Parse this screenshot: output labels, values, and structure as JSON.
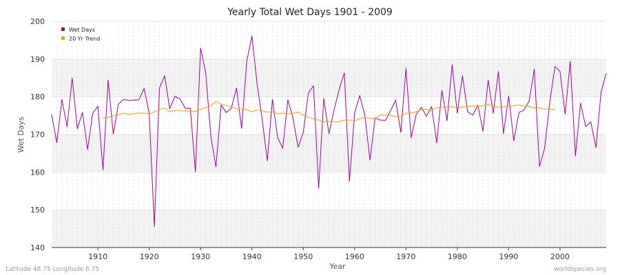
{
  "footer": {
    "left": "Latitude 48.75 Longitude 6.75",
    "right": "worldspecies.org"
  },
  "colors": {
    "wet_days": "#990099",
    "trend": "#ff9900",
    "band": "#f2f2f2",
    "grid": "#dddddd"
  },
  "chart_data": {
    "type": "line",
    "title": "Yearly Total Wet Days 1901 - 2009",
    "xlabel": "Year",
    "ylabel": "Wet Days",
    "xlim": [
      1901,
      2009
    ],
    "ylim": [
      140,
      200
    ],
    "xticks": [
      1910,
      1920,
      1930,
      1940,
      1950,
      1960,
      1970,
      1980,
      1990,
      2000
    ],
    "yticks": [
      140,
      150,
      160,
      170,
      180,
      190,
      200
    ],
    "grid": true,
    "legend": "top-left",
    "series": [
      {
        "name": "Wet Days",
        "color": "#990099",
        "x": [
          1901,
          1902,
          1903,
          1904,
          1905,
          1906,
          1907,
          1908,
          1909,
          1910,
          1911,
          1912,
          1913,
          1914,
          1915,
          1916,
          1917,
          1918,
          1919,
          1920,
          1921,
          1922,
          1923,
          1924,
          1925,
          1926,
          1927,
          1928,
          1929,
          1930,
          1931,
          1932,
          1933,
          1934,
          1935,
          1936,
          1937,
          1938,
          1939,
          1940,
          1941,
          1942,
          1943,
          1944,
          1945,
          1946,
          1947,
          1948,
          1949,
          1950,
          1951,
          1952,
          1953,
          1954,
          1955,
          1956,
          1957,
          1958,
          1959,
          1960,
          1961,
          1962,
          1963,
          1964,
          1965,
          1966,
          1967,
          1968,
          1969,
          1970,
          1971,
          1972,
          1973,
          1974,
          1975,
          1976,
          1977,
          1978,
          1979,
          1980,
          1981,
          1982,
          1983,
          1984,
          1985,
          1986,
          1987,
          1988,
          1989,
          1990,
          1991,
          1992,
          1993,
          1994,
          1995,
          1996,
          1997,
          1998,
          1999,
          2000,
          2001,
          2002,
          2003,
          2004,
          2005,
          2006,
          2007,
          2008,
          2009
        ],
        "y": [
          175.3,
          167.8,
          179.3,
          172.0,
          185.0,
          171.5,
          175.8,
          166.0,
          175.6,
          177.5,
          160.5,
          184.4,
          170.1,
          178.0,
          179.3,
          179.0,
          179.1,
          179.2,
          182.2,
          175.6,
          145.5,
          182.3,
          185.6,
          176.8,
          180.1,
          179.4,
          177.0,
          176.9,
          160.1,
          192.9,
          186.4,
          169.4,
          161.4,
          177.8,
          175.8,
          177.0,
          182.3,
          171.6,
          189.4,
          196.1,
          183.6,
          174.0,
          163.0,
          179.3,
          169.2,
          166.3,
          179.2,
          174.3,
          166.6,
          170.5,
          181.0,
          182.9,
          155.7,
          179.6,
          170.2,
          176.5,
          182.0,
          186.3,
          157.5,
          175.7,
          180.3,
          175.0,
          163.2,
          174.4,
          173.8,
          173.7,
          176.3,
          179.1,
          170.5,
          187.5,
          169.1,
          175.3,
          177.2,
          174.8,
          177.4,
          167.7,
          181.7,
          173.6,
          188.5,
          175.6,
          185.6,
          176.0,
          175.1,
          177.8,
          170.8,
          184.4,
          175.6,
          186.7,
          170.2,
          180.2,
          168.3,
          175.8,
          176.5,
          178.9,
          187.3,
          161.5,
          166.3,
          178.4,
          188.0,
          186.7,
          175.4,
          189.4,
          164.3,
          178.3,
          172.1,
          173.3,
          166.5,
          181.2,
          186.2
        ]
      },
      {
        "name": "20 Yr Trend",
        "color": "#ff9900",
        "x": [
          1911,
          1912,
          1913,
          1914,
          1915,
          1916,
          1917,
          1918,
          1919,
          1920,
          1921,
          1922,
          1923,
          1924,
          1925,
          1926,
          1927,
          1928,
          1929,
          1930,
          1931,
          1932,
          1933,
          1934,
          1935,
          1936,
          1937,
          1938,
          1939,
          1940,
          1941,
          1942,
          1943,
          1944,
          1945,
          1946,
          1947,
          1948,
          1949,
          1950,
          1951,
          1952,
          1953,
          1954,
          1955,
          1956,
          1957,
          1958,
          1959,
          1960,
          1961,
          1962,
          1963,
          1964,
          1965,
          1966,
          1967,
          1968,
          1969,
          1970,
          1971,
          1972,
          1973,
          1974,
          1975,
          1976,
          1977,
          1978,
          1979,
          1980,
          1981,
          1982,
          1983,
          1984,
          1985,
          1986,
          1987,
          1988,
          1989,
          1990,
          1991,
          1992,
          1993,
          1994,
          1995,
          1996,
          1997,
          1998,
          1999
        ],
        "y": [
          174.3,
          174.5,
          175.0,
          175.2,
          175.6,
          175.3,
          175.4,
          175.7,
          175.6,
          175.4,
          176.0,
          176.6,
          177.0,
          176.0,
          176.4,
          176.3,
          176.2,
          176.2,
          176.0,
          176.6,
          177.1,
          177.6,
          178.7,
          178.0,
          177.7,
          177.3,
          176.8,
          176.6,
          176.6,
          176.0,
          176.5,
          176.3,
          175.9,
          176.0,
          175.5,
          175.6,
          175.5,
          175.6,
          175.9,
          175.1,
          174.6,
          174.1,
          173.8,
          173.3,
          173.5,
          173.3,
          173.4,
          173.8,
          173.8,
          173.6,
          174.2,
          174.5,
          174.2,
          174.1,
          175.2,
          175.1,
          175.0,
          174.7,
          174.8,
          175.6,
          175.7,
          176.0,
          176.5,
          176.6,
          176.4,
          177.1,
          177.2,
          177.3,
          177.3,
          177.1,
          177.2,
          177.5,
          177.5,
          177.5,
          177.6,
          178.0,
          177.3,
          177.2,
          177.3,
          177.4,
          177.6,
          177.8,
          177.5,
          177.5,
          177.0,
          177.1,
          176.7,
          176.6,
          176.6
        ]
      }
    ]
  }
}
